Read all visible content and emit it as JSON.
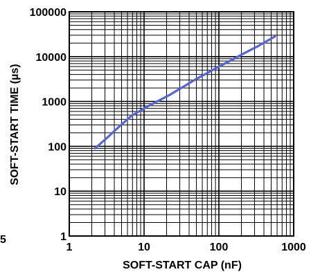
{
  "stray_label": "5",
  "chart_data": {
    "type": "line",
    "xlabel": "SOFT-START CAP (nF)",
    "ylabel": "SOFT-START TIME (µs)",
    "xscale": "log",
    "yscale": "log",
    "xlim": [
      1,
      1000
    ],
    "ylim": [
      1,
      100000
    ],
    "x_tick_labels": [
      "1",
      "10",
      "100",
      "1000"
    ],
    "y_tick_labels": [
      "1",
      "10",
      "100",
      "1000",
      "10000",
      "100000"
    ],
    "grid": true,
    "colors": {
      "line": "#5566cc",
      "grid": "#000000"
    },
    "series": [
      {
        "x": [
          2.2,
          3,
          4.7,
          6.8,
          10,
          15,
          22,
          33,
          47,
          68,
          100,
          150,
          220,
          330,
          560
        ],
        "y": [
          90,
          140,
          280,
          480,
          700,
          1000,
          1400,
          2100,
          3000,
          4200,
          6000,
          8500,
          12000,
          17000,
          28000
        ]
      }
    ]
  }
}
